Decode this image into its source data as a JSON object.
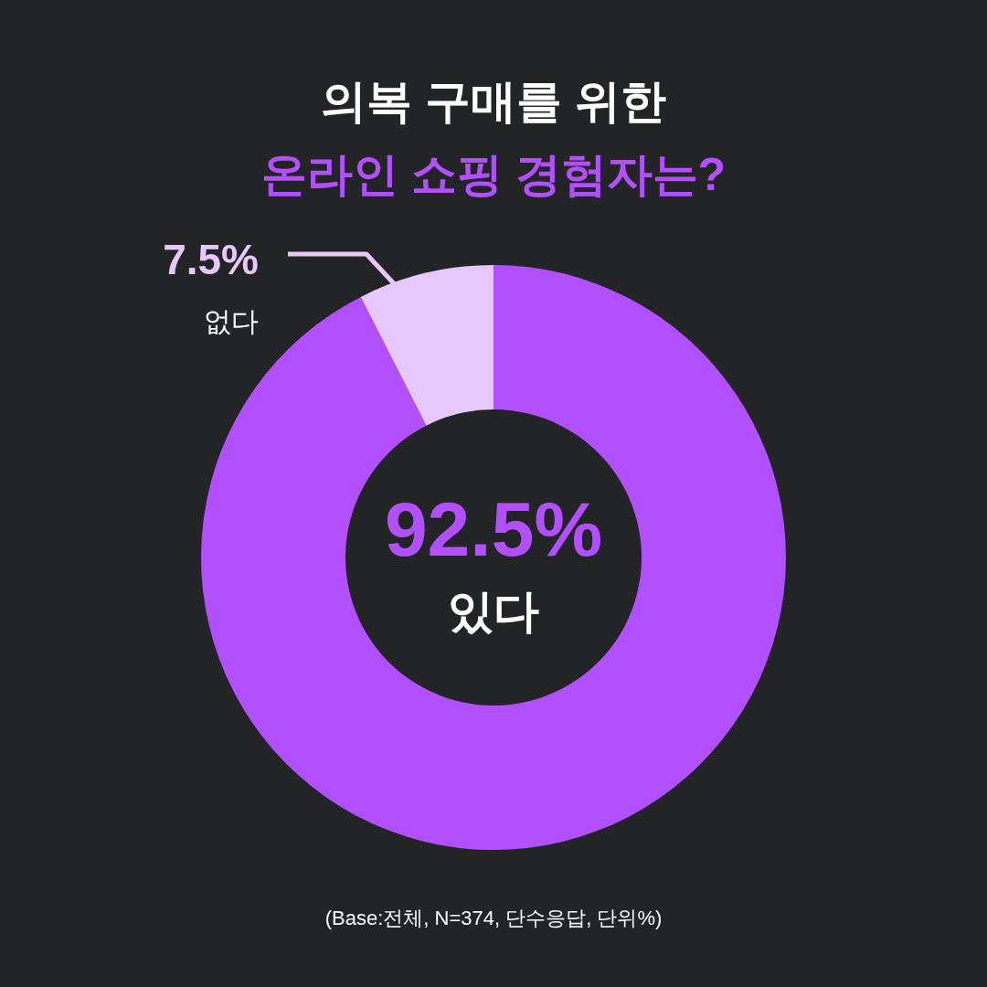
{
  "chart_data": {
    "type": "donut",
    "title": "의복 구매를 위한",
    "subtitle": "온라인 쇼핑 경험자는?",
    "categories": [
      "있다",
      "없다"
    ],
    "values": [
      92.5,
      7.5
    ],
    "colors": [
      "#b24ffe",
      "#e6c8fd"
    ],
    "value_labels": [
      "92.5%",
      "7.5%"
    ],
    "annotations": [
      "(Base:전체, N=374, 단수응답, 단위%)"
    ]
  }
}
